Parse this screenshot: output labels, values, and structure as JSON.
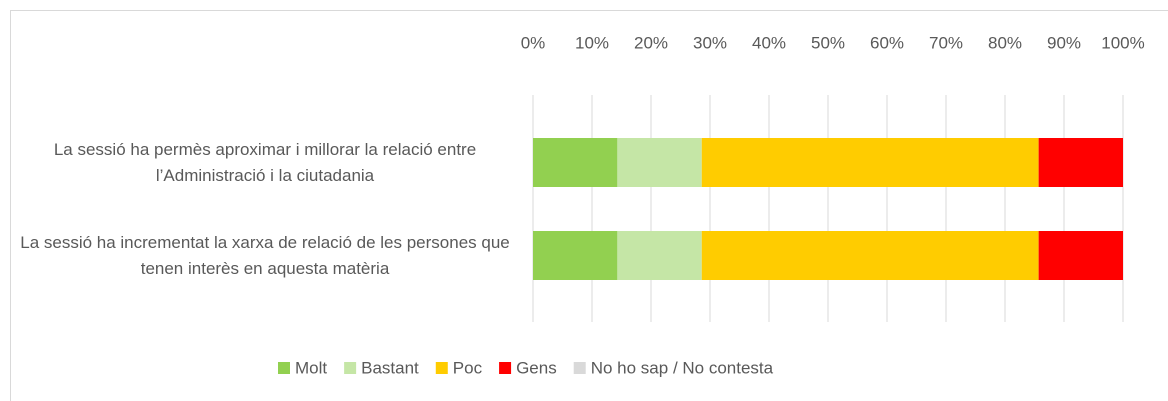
{
  "chart_data": {
    "type": "stacked_barh",
    "categories": [
      "La sessió ha permès aproximar i millorar la relació entre l’Administració i la ciutadania",
      "La sessió ha incrementat la xarxa de relació de les persones que tenen interès en aquesta matèria"
    ],
    "series": [
      {
        "name": "Molt",
        "color": "#92d050",
        "values": [
          14.3,
          14.3
        ]
      },
      {
        "name": "Bastant",
        "color": "#c5e6a6",
        "values": [
          14.3,
          14.3
        ]
      },
      {
        "name": "Poc",
        "color": "#ffcc00",
        "values": [
          57.1,
          57.1
        ]
      },
      {
        "name": "Gens",
        "color": "#ff0000",
        "values": [
          14.3,
          14.3
        ]
      },
      {
        "name": "No ho sap / No contesta",
        "color": "#d9d9d9",
        "values": [
          0,
          0
        ]
      }
    ],
    "xlim": [
      0,
      100
    ],
    "xticks": [
      {
        "value": 0,
        "label": "0%"
      },
      {
        "value": 10,
        "label": "10%"
      },
      {
        "value": 20,
        "label": "20%"
      },
      {
        "value": 30,
        "label": "30%"
      },
      {
        "value": 40,
        "label": "40%"
      },
      {
        "value": 50,
        "label": "50%"
      },
      {
        "value": 60,
        "label": "60%"
      },
      {
        "value": 70,
        "label": "70%"
      },
      {
        "value": 80,
        "label": "80%"
      },
      {
        "value": 90,
        "label": "90%"
      },
      {
        "value": 100,
        "label": "100%"
      }
    ],
    "grid": true,
    "legend": "bottom"
  }
}
